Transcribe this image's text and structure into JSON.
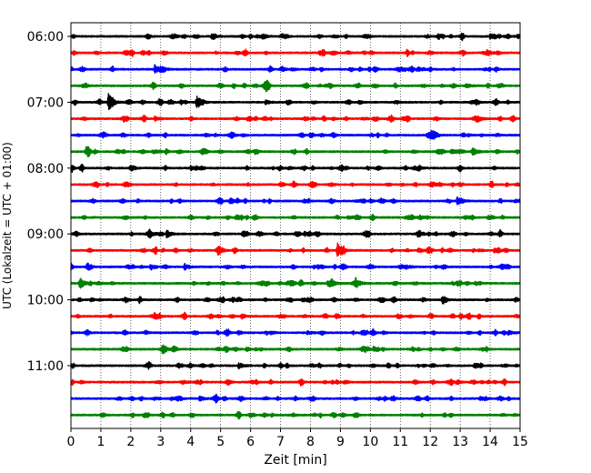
{
  "chart_data": {
    "type": "line",
    "title": "",
    "xlabel": "Zeit  [min]",
    "ylabel": "UTC (Lokalzeit = UTC + 01:00)",
    "xlim": [
      0,
      15
    ],
    "x_ticks": [
      "0",
      "1",
      "2",
      "3",
      "4",
      "5",
      "6",
      "7",
      "8",
      "9",
      "10",
      "11",
      "12",
      "13",
      "14",
      "15"
    ],
    "y_tick_labels": [
      "06:00",
      "07:00",
      "08:00",
      "09:00",
      "10:00",
      "11:00"
    ],
    "grid": "vertical-dotted",
    "trace_interval_minutes": 15,
    "trace_count": 24,
    "trace_start": "06:00",
    "color_cycle": [
      "#000000",
      "#ff0000",
      "#0000ff",
      "#008000"
    ],
    "events": [
      {
        "trace": 0,
        "t": 4.7,
        "amp": 0.25
      },
      {
        "trace": 0,
        "t": 6.4,
        "amp": 0.3
      },
      {
        "trace": 0,
        "t": 14.0,
        "amp": 0.3
      },
      {
        "trace": 1,
        "t": 8.3,
        "amp": 0.25
      },
      {
        "trace": 1,
        "t": 13.9,
        "amp": 0.35
      },
      {
        "trace": 2,
        "t": 2.8,
        "amp": 0.55
      },
      {
        "trace": 2,
        "t": 3.0,
        "amp": 0.3
      },
      {
        "trace": 3,
        "t": 13.2,
        "amp": 0.25
      },
      {
        "trace": 4,
        "t": 1.25,
        "amp": 0.95
      },
      {
        "trace": 4,
        "t": 4.2,
        "amp": 0.55
      },
      {
        "trace": 4,
        "t": 6.5,
        "amp": 0.25
      },
      {
        "trace": 5,
        "t": 2.8,
        "amp": 0.25
      },
      {
        "trace": 5,
        "t": 13.6,
        "amp": 0.3
      },
      {
        "trace": 7,
        "t": 0.5,
        "amp": 0.45
      },
      {
        "trace": 7,
        "t": 12.7,
        "amp": 0.3
      },
      {
        "trace": 7,
        "t": 13.4,
        "amp": 0.55
      },
      {
        "trace": 8,
        "t": 4.0,
        "amp": 0.25
      },
      {
        "trace": 8,
        "t": 11.5,
        "amp": 0.25
      },
      {
        "trace": 10,
        "t": 5.3,
        "amp": 0.25
      },
      {
        "trace": 10,
        "t": 12.9,
        "amp": 0.45
      },
      {
        "trace": 12,
        "t": 2.6,
        "amp": 0.5
      },
      {
        "trace": 12,
        "t": 3.2,
        "amp": 0.45
      },
      {
        "trace": 12,
        "t": 7.8,
        "amp": 0.25
      },
      {
        "trace": 13,
        "t": 4.9,
        "amp": 0.35
      },
      {
        "trace": 13,
        "t": 8.9,
        "amp": 0.85
      },
      {
        "trace": 13,
        "t": 11.6,
        "amp": 0.3
      },
      {
        "trace": 14,
        "t": 3.8,
        "amp": 0.35
      },
      {
        "trace": 14,
        "t": 11.2,
        "amp": 0.25
      },
      {
        "trace": 15,
        "t": 0.3,
        "amp": 0.75
      },
      {
        "trace": 15,
        "t": 8.7,
        "amp": 0.35
      },
      {
        "trace": 15,
        "t": 9.5,
        "amp": 0.65
      },
      {
        "trace": 16,
        "t": 12.4,
        "amp": 0.25
      },
      {
        "trace": 17,
        "t": 2.8,
        "amp": 0.35
      },
      {
        "trace": 17,
        "t": 13.0,
        "amp": 0.25
      },
      {
        "trace": 18,
        "t": 7.9,
        "amp": 0.25
      },
      {
        "trace": 18,
        "t": 14.6,
        "amp": 0.25
      },
      {
        "trace": 19,
        "t": 10.1,
        "amp": 0.3
      },
      {
        "trace": 20,
        "t": 5.6,
        "amp": 0.35
      },
      {
        "trace": 21,
        "t": 3.7,
        "amp": 0.25
      },
      {
        "trace": 22,
        "t": 4.3,
        "amp": 0.25
      }
    ]
  }
}
